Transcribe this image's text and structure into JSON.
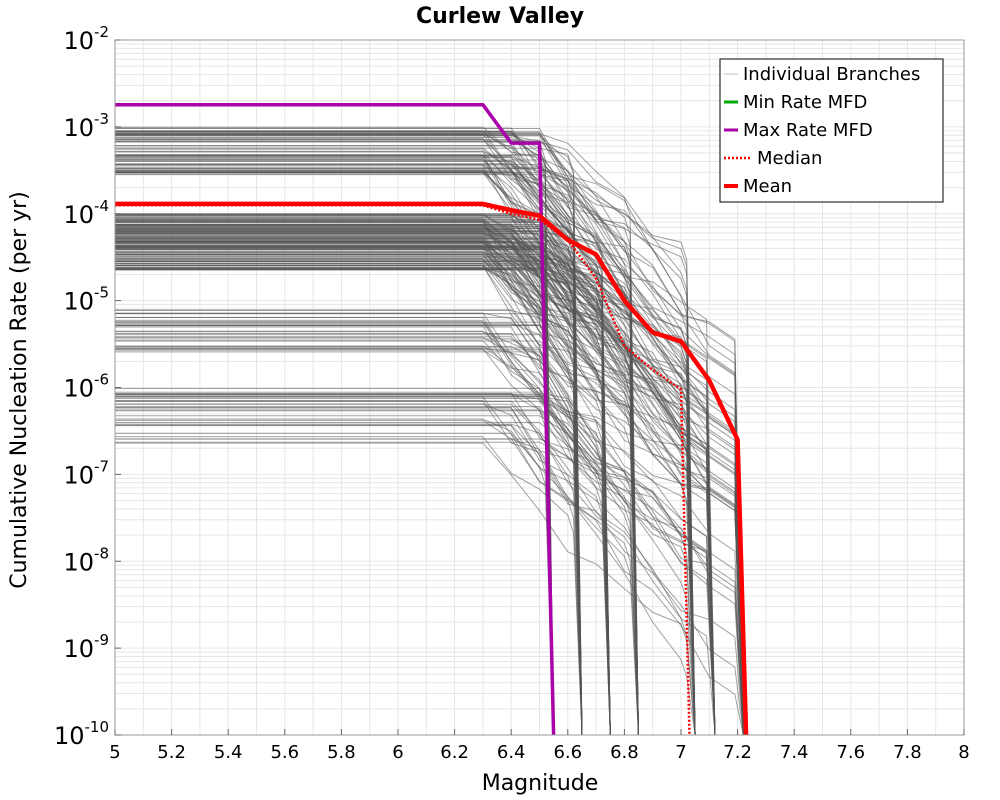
{
  "chart_data": {
    "type": "line",
    "title": "Curlew Valley",
    "xlabel": "Magnitude",
    "ylabel": "Cumulative Nucleation Rate (per yr)",
    "xlim": [
      5,
      8
    ],
    "ylim_log10": [
      -10,
      -2
    ],
    "y_scale": "log",
    "x_ticks": [
      "5",
      "5.2",
      "5.4",
      "5.6",
      "5.8",
      "6",
      "6.2",
      "6.4",
      "6.6",
      "6.8",
      "7",
      "7.2",
      "7.4",
      "7.6",
      "7.8",
      "8"
    ],
    "y_tick_exponents": [
      "-2",
      "-3",
      "-4",
      "-5",
      "-6",
      "-7",
      "-8",
      "-9",
      "-10"
    ],
    "y_tick_base": "10",
    "grid": true,
    "legend_position": "top-right",
    "legend": [
      {
        "label": "Individual Branches",
        "color": "#bdbdbd",
        "style": "thin"
      },
      {
        "label": "Min Rate MFD",
        "color": "#00aa00",
        "style": "solid"
      },
      {
        "label": "Max Rate MFD",
        "color": "#aa00aa",
        "style": "solid"
      },
      {
        "label": "Median",
        "color": "#ff0000",
        "style": "dotted"
      },
      {
        "label": "Mean",
        "color": "#ff0000",
        "style": "thick"
      }
    ],
    "series": [
      {
        "name": "Max Rate MFD",
        "color": "#aa00aa",
        "x": [
          5.0,
          6.3,
          6.4,
          6.5,
          6.55
        ],
        "y": [
          0.0018,
          0.0018,
          0.00065,
          0.00065,
          1e-10
        ]
      },
      {
        "name": "Median",
        "color": "#ff0000",
        "x": [
          5.0,
          6.3,
          6.4,
          6.5,
          6.6,
          6.7,
          6.8,
          6.9,
          7.0,
          7.03
        ],
        "y": [
          0.000125,
          0.000125,
          0.0001,
          8.5e-05,
          5e-05,
          1.8e-05,
          3e-06,
          1.6e-06,
          9.5e-07,
          1e-10
        ]
      },
      {
        "name": "Mean",
        "color": "#ff0000",
        "x": [
          5.0,
          6.3,
          6.4,
          6.5,
          6.6,
          6.7,
          6.8,
          6.9,
          7.0,
          7.1,
          7.2,
          7.23
        ],
        "y": [
          0.00013,
          0.00013,
          0.00011,
          9.5e-05,
          5e-05,
          3.4e-05,
          1e-05,
          4.3e-06,
          3.4e-06,
          1.2e-06,
          2.5e-07,
          1e-10
        ]
      }
    ]
  }
}
